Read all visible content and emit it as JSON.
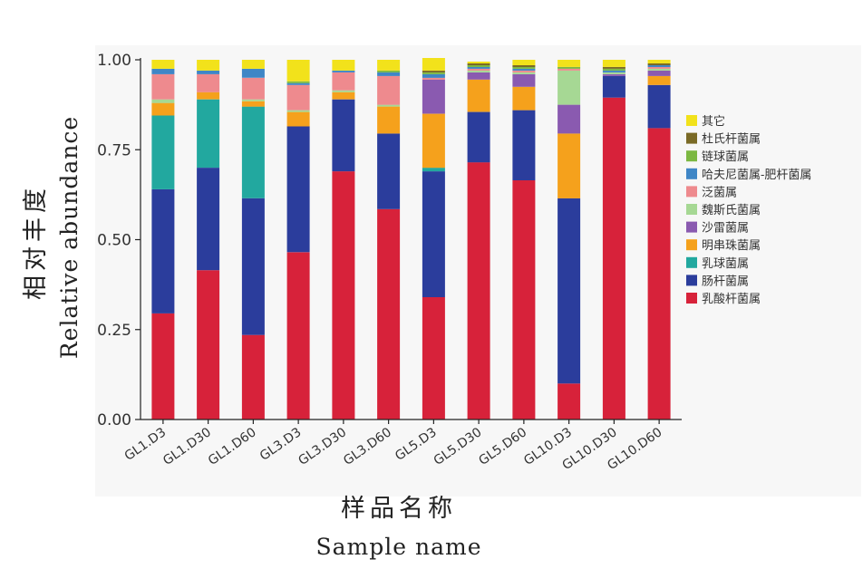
{
  "chart_data": {
    "type": "bar",
    "stacked": true,
    "ylabel_cn": "相对丰度",
    "ylabel": "Relative abundance",
    "xlabel_cn": "样品名称",
    "xlabel": "Sample name",
    "ylim": [
      0,
      1
    ],
    "yticks": [
      "0.00",
      "0.25",
      "0.50",
      "0.75",
      "1.00"
    ],
    "legend_position": "right",
    "categories": [
      "GL1.D3",
      "GL1.D30",
      "GL1.D60",
      "GL3.D3",
      "GL3.D30",
      "GL3.D60",
      "GL5.D3",
      "GL5.D30",
      "GL5.D60",
      "GL10.D3",
      "GL10.D30",
      "GL10.D60"
    ],
    "series": [
      {
        "name": "乳酸杆菌属",
        "color": "#d7223a",
        "values": [
          0.295,
          0.415,
          0.235,
          0.465,
          0.69,
          0.585,
          0.34,
          0.715,
          0.665,
          0.1,
          0.895,
          0.81
        ]
      },
      {
        "name": "肠杆菌属",
        "color": "#2b3d9c",
        "values": [
          0.345,
          0.285,
          0.38,
          0.35,
          0.2,
          0.21,
          0.35,
          0.14,
          0.195,
          0.515,
          0.06,
          0.12
        ]
      },
      {
        "name": "乳球菌属",
        "color": "#22a89f",
        "values": [
          0.205,
          0.19,
          0.255,
          0.0,
          0.0,
          0.0,
          0.01,
          0.0,
          0.0,
          0.0,
          0.0,
          0.0
        ]
      },
      {
        "name": "明串珠菌属",
        "color": "#f5a11c",
        "values": [
          0.035,
          0.02,
          0.015,
          0.04,
          0.02,
          0.075,
          0.15,
          0.09,
          0.065,
          0.18,
          0.0,
          0.025
        ]
      },
      {
        "name": "沙雷菌属",
        "color": "#8a5ab0",
        "values": [
          0.0,
          0.0,
          0.0,
          0.0,
          0.0,
          0.0,
          0.095,
          0.02,
          0.035,
          0.08,
          0.005,
          0.015
        ]
      },
      {
        "name": "魏斯氏菌属",
        "color": "#a6d894",
        "values": [
          0.01,
          0.0,
          0.005,
          0.005,
          0.005,
          0.005,
          0.0,
          0.005,
          0.005,
          0.095,
          0.005,
          0.005
        ]
      },
      {
        "name": "泛菌属",
        "color": "#ee8a8e",
        "values": [
          0.07,
          0.05,
          0.06,
          0.07,
          0.05,
          0.08,
          0.005,
          0.005,
          0.005,
          0.005,
          0.0,
          0.005
        ]
      },
      {
        "name": "哈夫尼菌属-肥杆菌属",
        "color": "#3f86c6",
        "values": [
          0.015,
          0.01,
          0.025,
          0.005,
          0.005,
          0.01,
          0.01,
          0.005,
          0.005,
          0.0,
          0.005,
          0.005
        ]
      },
      {
        "name": "链球菌属",
        "color": "#7cb842",
        "values": [
          0.0,
          0.0,
          0.0,
          0.005,
          0.0,
          0.005,
          0.005,
          0.005,
          0.005,
          0.005,
          0.005,
          0.0
        ]
      },
      {
        "name": "杜氏杆菌属",
        "color": "#7a6a26",
        "values": [
          0.0,
          0.0,
          0.0,
          0.0,
          0.0,
          0.0,
          0.005,
          0.005,
          0.005,
          0.0,
          0.005,
          0.005
        ]
      },
      {
        "name": "其它",
        "color": "#f2e21b",
        "values": [
          0.025,
          0.03,
          0.025,
          0.06,
          0.03,
          0.03,
          0.035,
          0.005,
          0.015,
          0.02,
          0.02,
          0.01
        ]
      }
    ],
    "legend_order": [
      "其它",
      "杜氏杆菌属",
      "链球菌属",
      "哈夫尼菌属-肥杆菌属",
      "泛菌属",
      "魏斯氏菌属",
      "沙雷菌属",
      "明串珠菌属",
      "乳球菌属",
      "肠杆菌属",
      "乳酸杆菌属"
    ],
    "grid": false
  }
}
